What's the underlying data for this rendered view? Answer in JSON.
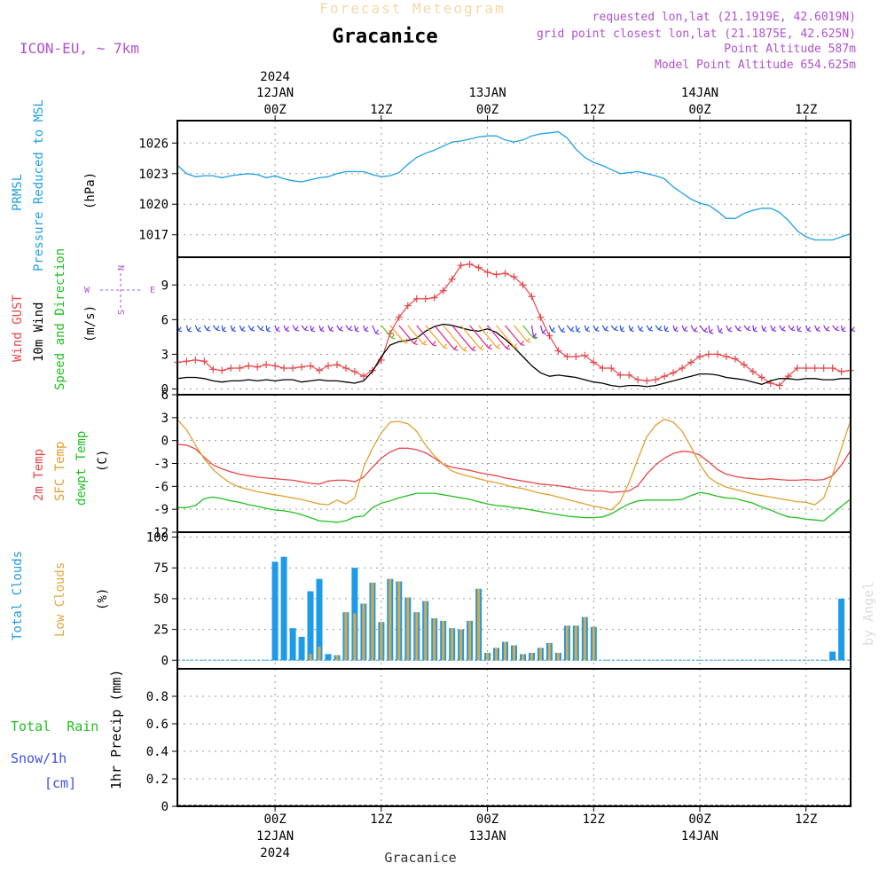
{
  "header": {
    "subtitle": "Forecast Meteogram",
    "location": "Gracanice",
    "model": "ICON-EU, ~ 7km",
    "requested": "requested lon,lat (21.1919E, 42.6019N)",
    "gridpoint": "grid point closest lon,lat (21.1875E, 42.625N)",
    "point_alt": "Point Altitude 587m",
    "model_alt": "Model Point Altitude 654.625m",
    "watermark": "by Angel",
    "footer": "Gracanice"
  },
  "time_axis": {
    "top_ticks": [
      {
        "day": 0,
        "line1": "2024",
        "line2": "12JAN",
        "line3": "00Z"
      },
      {
        "day": 0.5,
        "line1": "",
        "line2": "",
        "line3": "12Z"
      },
      {
        "day": 1,
        "line1": "",
        "line2": "13JAN",
        "line3": "00Z"
      },
      {
        "day": 1.5,
        "line1": "",
        "line2": "",
        "line3": "12Z"
      },
      {
        "day": 2,
        "line1": "",
        "line2": "14JAN",
        "line3": "00Z"
      },
      {
        "day": 2.5,
        "line1": "",
        "line2": "",
        "line3": "12Z"
      }
    ],
    "bottom_ticks": [
      {
        "day": 0,
        "line1": "00Z",
        "line2": "12JAN",
        "line3": "2024"
      },
      {
        "day": 0.5,
        "line1": "12Z",
        "line2": "",
        "line3": ""
      },
      {
        "day": 1,
        "line1": "00Z",
        "line2": "13JAN",
        "line3": ""
      },
      {
        "day": 1.5,
        "line1": "12Z",
        "line2": "",
        "line3": ""
      },
      {
        "day": 2,
        "line1": "00Z",
        "line2": "14JAN",
        "line3": ""
      },
      {
        "day": 2.5,
        "line1": "12Z",
        "line2": "",
        "line3": ""
      }
    ],
    "xlim_days": [
      -0.46,
      2.71
    ]
  },
  "chart_data": [
    {
      "type": "line",
      "panel": "pressure",
      "ylabel_lines": [
        "PRMSL",
        "Pressure Reduced to MSL"
      ],
      "units": "(hPa)",
      "ylim": [
        1014.8,
        1028.2
      ],
      "yticks": [
        1017,
        1020,
        1023,
        1026
      ],
      "colors": {
        "line": "#1ea0e6"
      },
      "x_hours": [
        -11,
        -10,
        -9,
        -8,
        -7,
        -6,
        -5,
        -4,
        -3,
        -2,
        -1,
        0,
        1,
        2,
        3,
        4,
        5,
        6,
        7,
        8,
        9,
        10,
        11,
        12,
        13,
        14,
        15,
        16,
        17,
        18,
        19,
        20,
        21,
        22,
        23,
        24,
        25,
        26,
        27,
        28,
        29,
        30,
        31,
        32,
        33,
        34,
        35,
        36,
        37,
        38,
        39,
        40,
        41,
        42,
        43,
        44,
        45,
        46,
        47,
        48,
        49,
        50,
        51,
        52,
        53,
        54,
        55,
        56,
        57,
        58,
        59,
        60,
        61,
        62,
        63,
        64,
        65
      ],
      "values": [
        1023.8,
        1023,
        1022.7,
        1022.8,
        1022.8,
        1022.6,
        1022.8,
        1022.9,
        1023,
        1022.9,
        1022.6,
        1022.8,
        1022.5,
        1022.3,
        1022.2,
        1022.4,
        1022.6,
        1022.7,
        1023,
        1023.2,
        1023.2,
        1023.2,
        1022.9,
        1022.7,
        1022.8,
        1023.1,
        1023.9,
        1024.6,
        1025,
        1025.3,
        1025.7,
        1026.1,
        1026.2,
        1026.4,
        1026.6,
        1026.7,
        1026.7,
        1026.3,
        1026.1,
        1026.3,
        1026.7,
        1026.9,
        1027,
        1027.1,
        1026.5,
        1025.4,
        1024.6,
        1024.1,
        1023.8,
        1023.4,
        1023,
        1023.1,
        1023.2,
        1023,
        1022.8,
        1022.5,
        1021.7,
        1021.1,
        1020.5,
        1020.1,
        1019.9,
        1019.3,
        1018.6,
        1018.6,
        1019.1,
        1019.4,
        1019.6,
        1019.6,
        1019.2,
        1018.4,
        1017.4,
        1016.8,
        1016.5,
        1016.5,
        1016.5,
        1016.8,
        1017.1
      ]
    },
    {
      "type": "line",
      "panel": "wind",
      "ylabel_lines": [
        "Wind GUST",
        "10m Wind",
        "Speed and Direction"
      ],
      "units": "(m/s)",
      "compass": {
        "n": "N",
        "s": "S",
        "e": "E",
        "w": "W"
      },
      "ylim": [
        -0.5,
        11.4
      ],
      "yticks": [
        0,
        3,
        6,
        9
      ],
      "colors": {
        "gust": "#e8464a",
        "wind": "#000000",
        "arrow_purple": "#8a2be2",
        "arrow_blue": "#2850e0",
        "arrow_orange": "#f0a020",
        "arrow_magenta": "#e0208a",
        "arrow_green": "#60c020"
      },
      "x_hours": [
        -11,
        -10,
        -9,
        -8,
        -7,
        -6,
        -5,
        -4,
        -3,
        -2,
        -1,
        0,
        1,
        2,
        3,
        4,
        5,
        6,
        7,
        8,
        9,
        10,
        11,
        12,
        13,
        14,
        15,
        16,
        17,
        18,
        19,
        20,
        21,
        22,
        23,
        24,
        25,
        26,
        27,
        28,
        29,
        30,
        31,
        32,
        33,
        34,
        35,
        36,
        37,
        38,
        39,
        40,
        41,
        42,
        43,
        44,
        45,
        46,
        47,
        48,
        49,
        50,
        51,
        52,
        53,
        54,
        55,
        56,
        57,
        58,
        59,
        60,
        61,
        62,
        63,
        64,
        65
      ],
      "series": [
        {
          "name": "Wind GUST",
          "values": [
            2.3,
            2.4,
            2.5,
            2.4,
            1.7,
            1.6,
            1.8,
            1.8,
            2,
            1.9,
            2.1,
            2,
            1.8,
            1.8,
            1.9,
            2,
            1.6,
            2,
            2.1,
            1.8,
            1.5,
            1.1,
            1.6,
            2.5,
            4.8,
            6.2,
            7.2,
            7.8,
            7.8,
            7.9,
            8.5,
            9.5,
            10.7,
            10.8,
            10.5,
            10.1,
            9.9,
            10,
            9.7,
            9,
            8,
            6.2,
            4.6,
            3.3,
            2.8,
            2.8,
            2.9,
            2.3,
            1.8,
            1.8,
            1.2,
            1.2,
            0.8,
            0.7,
            0.8,
            1.1,
            1.4,
            1.8,
            2.3,
            2.8,
            3,
            3,
            2.8,
            2.6,
            2.1,
            1.5,
            1,
            0.5,
            0.3,
            1.1,
            1.8,
            1.8,
            1.8,
            1.8,
            1.8,
            1.5,
            1.6
          ]
        },
        {
          "name": "10m Wind",
          "values": [
            0.9,
            1,
            1,
            0.9,
            0.7,
            0.6,
            0.7,
            0.7,
            0.8,
            0.7,
            0.8,
            0.7,
            0.8,
            0.8,
            0.6,
            0.7,
            0.8,
            0.7,
            0.7,
            0.6,
            0.5,
            0.7,
            1.5,
            2.8,
            3.8,
            4.1,
            4.2,
            4.4,
            5,
            5.4,
            5.6,
            5.5,
            5.3,
            5.1,
            5,
            5.2,
            4.9,
            4.3,
            3.6,
            2.8,
            2,
            1.4,
            1.1,
            1.2,
            1.1,
            1,
            0.8,
            0.6,
            0.5,
            0.3,
            0.2,
            0.3,
            0.3,
            0.2,
            0.3,
            0.5,
            0.7,
            0.9,
            1.1,
            1.3,
            1.3,
            1.2,
            1,
            0.9,
            0.8,
            0.6,
            0.4,
            0.7,
            0.9,
            0.9,
            0.8,
            0.9,
            0.9,
            0.8,
            0.8,
            0.9,
            0.9
          ]
        }
      ],
      "direction_arrows": "coloured barbs along 5.5 m/s line"
    },
    {
      "type": "line",
      "panel": "temperature",
      "ylabel_lines": [
        "2m Temp",
        "SFC Temp",
        "dewpt Temp"
      ],
      "units": "(C)",
      "ylim": [
        -12,
        6
      ],
      "yticks": [
        -12,
        -9,
        -6,
        -3,
        0,
        3,
        6
      ],
      "colors": {
        "t2m": "#e8464a",
        "tsfc": "#e0a030",
        "dewpt": "#20c020"
      },
      "x_hours": [
        -11,
        -10,
        -9,
        -8,
        -7,
        -6,
        -5,
        -4,
        -3,
        -2,
        -1,
        0,
        1,
        2,
        3,
        4,
        5,
        6,
        7,
        8,
        9,
        10,
        11,
        12,
        13,
        14,
        15,
        16,
        17,
        18,
        19,
        20,
        21,
        22,
        23,
        24,
        25,
        26,
        27,
        28,
        29,
        30,
        31,
        32,
        33,
        34,
        35,
        36,
        37,
        38,
        39,
        40,
        41,
        42,
        43,
        44,
        45,
        46,
        47,
        48,
        49,
        50,
        51,
        52,
        53,
        54,
        55,
        56,
        57,
        58,
        59,
        60,
        61,
        62,
        63,
        64,
        65
      ],
      "series": [
        {
          "name": "2m Temp",
          "values": [
            -0.5,
            -0.6,
            -1.1,
            -2.2,
            -3.2,
            -3.7,
            -4.1,
            -4.4,
            -4.6,
            -4.8,
            -4.9,
            -5,
            -5.1,
            -5.2,
            -5.4,
            -5.6,
            -5.7,
            -5.3,
            -5.2,
            -5.2,
            -5.4,
            -4.8,
            -3.5,
            -2.3,
            -1.5,
            -1,
            -1,
            -1.2,
            -1.6,
            -2.3,
            -3.1,
            -3.5,
            -3.7,
            -3.9,
            -4.2,
            -4.4,
            -4.6,
            -4.9,
            -5.1,
            -5.3,
            -5.5,
            -5.7,
            -5.8,
            -5.9,
            -6.1,
            -6.3,
            -6.5,
            -6.6,
            -6.6,
            -6.8,
            -6.7,
            -6.6,
            -5.9,
            -4.4,
            -3.2,
            -2.3,
            -1.7,
            -1.4,
            -1.5,
            -1.9,
            -2.8,
            -3.8,
            -4.4,
            -4.7,
            -4.9,
            -5,
            -5.1,
            -5,
            -5.1,
            -5.2,
            -5.2,
            -5.1,
            -5.2,
            -5.1,
            -4.6,
            -3.2,
            -1.4
          ]
        },
        {
          "name": "SFC Temp",
          "values": [
            2.7,
            1.4,
            -0.6,
            -2.4,
            -3.8,
            -4.8,
            -5.6,
            -6.1,
            -6.4,
            -6.7,
            -6.9,
            -7.1,
            -7.3,
            -7.5,
            -7.7,
            -8,
            -8.3,
            -8.4,
            -7.8,
            -8.3,
            -7.5,
            -3.5,
            -1,
            1,
            2.4,
            2.5,
            2.2,
            1.2,
            -0.6,
            -2,
            -3.1,
            -4,
            -4.4,
            -4.7,
            -5,
            -5.3,
            -5.5,
            -5.8,
            -6.1,
            -6.3,
            -6.6,
            -6.9,
            -7.1,
            -7.4,
            -7.7,
            -8,
            -8.3,
            -8.6,
            -8.8,
            -9.1,
            -8,
            -5.5,
            -2.4,
            0.5,
            2,
            2.8,
            2.4,
            1.2,
            -0.8,
            -3.1,
            -4.8,
            -5.6,
            -6.1,
            -6.4,
            -6.7,
            -7,
            -7.2,
            -7.4,
            -7.6,
            -7.8,
            -8,
            -8.1,
            -8.4,
            -7.5,
            -4.5,
            -1,
            2.5
          ]
        },
        {
          "name": "dewpt Temp",
          "values": [
            -8.8,
            -8.8,
            -8.5,
            -7.6,
            -7.4,
            -7.6,
            -7.9,
            -8.1,
            -8.4,
            -8.6,
            -8.9,
            -9.1,
            -9.2,
            -9.4,
            -9.7,
            -10.1,
            -10.5,
            -10.6,
            -10.7,
            -10.5,
            -10,
            -9.9,
            -8.8,
            -8.2,
            -7.9,
            -7.5,
            -7.2,
            -6.9,
            -6.9,
            -6.9,
            -7.1,
            -7.3,
            -7.5,
            -7.7,
            -8,
            -8.3,
            -8.5,
            -8.6,
            -8.8,
            -8.9,
            -9.1,
            -9.3,
            -9.5,
            -9.7,
            -9.9,
            -10,
            -10.1,
            -10.1,
            -10,
            -9.6,
            -8.9,
            -8.3,
            -7.9,
            -7.8,
            -7.8,
            -7.8,
            -7.8,
            -7.7,
            -7.2,
            -6.8,
            -7,
            -7.3,
            -7.5,
            -7.6,
            -7.9,
            -8.2,
            -8.7,
            -9.1,
            -9.6,
            -10,
            -10.1,
            -10.3,
            -10.4,
            -10.5,
            -9.6,
            -8.6,
            -7.7
          ]
        }
      ]
    },
    {
      "type": "bar",
      "panel": "clouds",
      "ylabel_lines": [
        "Total Clouds",
        "Low Clouds"
      ],
      "units": "(%)",
      "ylim": [
        -7,
        104
      ],
      "yticks": [
        0,
        25,
        50,
        75,
        100
      ],
      "colors": {
        "total": "#1e9be8",
        "low": "#e0a840"
      },
      "x_hours": [
        0,
        1,
        2,
        3,
        4,
        5,
        6,
        7,
        8,
        9,
        10,
        11,
        12,
        13,
        14,
        15,
        16,
        17,
        18,
        19,
        20,
        21,
        22,
        23,
        24,
        25,
        26,
        27,
        28,
        29,
        30,
        31,
        32,
        33,
        34,
        35,
        36,
        37,
        38,
        39,
        40,
        41,
        42,
        43,
        44,
        45,
        46,
        47,
        48,
        49,
        50,
        51,
        52,
        53,
        54,
        55,
        56,
        57,
        58,
        59,
        60,
        61,
        62,
        63,
        64
      ],
      "series": [
        {
          "name": "Total Clouds",
          "values": [
            80,
            84,
            26,
            19,
            56,
            66,
            5,
            4,
            39,
            75,
            46,
            63,
            31,
            66,
            64,
            51,
            39,
            48,
            34,
            32,
            26,
            25,
            32,
            58,
            6,
            10,
            15,
            12,
            5,
            6,
            10,
            14,
            6,
            28,
            28,
            35,
            27,
            0,
            0,
            0,
            0,
            0,
            0,
            0,
            0,
            0,
            0,
            0,
            0,
            0,
            0,
            0,
            0,
            0,
            0,
            0,
            0,
            0,
            0,
            0,
            0,
            0,
            0,
            7,
            50
          ]
        },
        {
          "name": "Low Clouds",
          "values": [
            0,
            0,
            0,
            0,
            5,
            11,
            0,
            4,
            39,
            38,
            46,
            63,
            31,
            66,
            64,
            51,
            39,
            48,
            34,
            32,
            26,
            25,
            32,
            58,
            6,
            10,
            15,
            12,
            5,
            6,
            10,
            14,
            6,
            28,
            28,
            35,
            27,
            0,
            0,
            0,
            0,
            0,
            0,
            0,
            0,
            0,
            0,
            0,
            0,
            0,
            0,
            0,
            0,
            0,
            0,
            0,
            0,
            0,
            0,
            0,
            0,
            0,
            0,
            0,
            0
          ]
        }
      ]
    },
    {
      "type": "bar",
      "panel": "precip",
      "ylabel": "1hr Precip (mm)",
      "legend": {
        "rain": "Total  Rain",
        "snow": "Snow/1h",
        "cm": "[cm]"
      },
      "colors": {
        "rain": "#20c020",
        "snow": "#4050e0"
      },
      "ylim": [
        0,
        1
      ],
      "yticks": [
        0,
        0.2,
        0.4,
        0.6,
        0.8
      ],
      "series": [
        {
          "name": "Total Rain",
          "values": []
        },
        {
          "name": "Snow/1h",
          "values": []
        }
      ]
    }
  ]
}
